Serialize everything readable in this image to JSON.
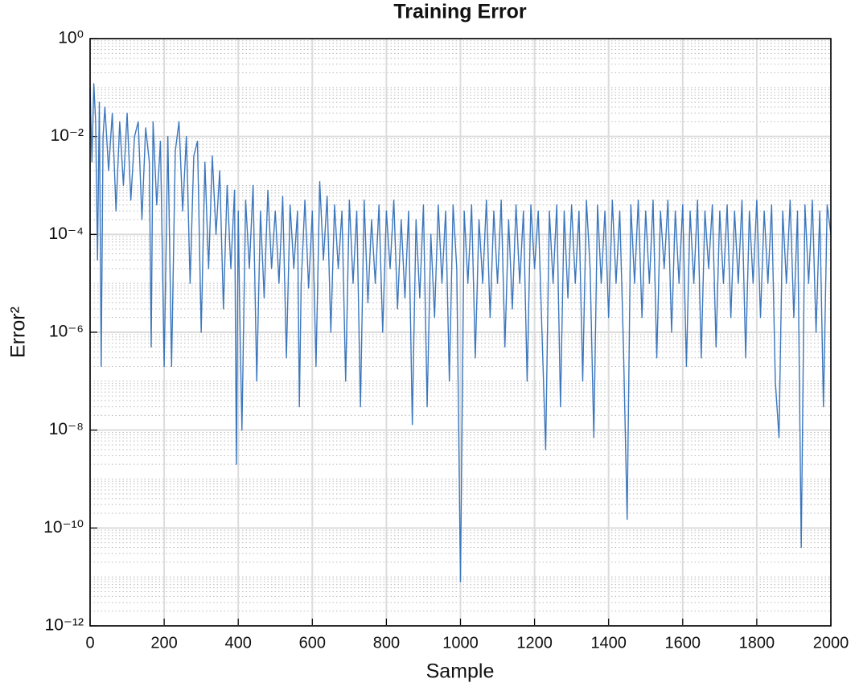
{
  "chart_data": {
    "type": "line",
    "title": "Training Error",
    "xlabel": "Sample",
    "ylabel": "Error²",
    "log_y": true,
    "grid": true,
    "minor_grid": true,
    "xlim": [
      0,
      2000
    ],
    "xticks": [
      0,
      200,
      400,
      600,
      800,
      1000,
      1200,
      1400,
      1600,
      1800,
      2000
    ],
    "ylim": [
      1e-12,
      1
    ],
    "yticks": [
      {
        "value": 1e-12,
        "label": "10⁻¹²"
      },
      {
        "value": 1e-10,
        "label": "10⁻¹⁰"
      },
      {
        "value": 1e-08,
        "label": "10⁻⁸"
      },
      {
        "value": 1e-06,
        "label": "10⁻⁶"
      },
      {
        "value": 0.0001,
        "label": "10⁻⁴"
      },
      {
        "value": 0.01,
        "label": "10⁻²"
      },
      {
        "value": 1,
        "label": "10⁰"
      }
    ],
    "x": [
      0,
      5,
      10,
      15,
      20,
      25,
      30,
      35,
      40,
      50,
      60,
      70,
      80,
      90,
      100,
      110,
      120,
      130,
      140,
      150,
      160,
      165,
      170,
      180,
      190,
      200,
      210,
      220,
      230,
      240,
      250,
      260,
      270,
      280,
      290,
      300,
      310,
      320,
      330,
      340,
      350,
      360,
      370,
      380,
      390,
      395,
      400,
      405,
      410,
      420,
      430,
      440,
      450,
      460,
      470,
      480,
      490,
      500,
      510,
      520,
      530,
      540,
      550,
      560,
      565,
      570,
      580,
      590,
      600,
      610,
      620,
      630,
      640,
      650,
      660,
      670,
      680,
      690,
      700,
      710,
      720,
      730,
      740,
      750,
      760,
      770,
      780,
      790,
      800,
      810,
      820,
      830,
      840,
      850,
      860,
      870,
      880,
      890,
      900,
      910,
      920,
      930,
      940,
      950,
      960,
      970,
      980,
      990,
      1000,
      1010,
      1020,
      1030,
      1040,
      1050,
      1060,
      1070,
      1080,
      1090,
      1100,
      1110,
      1120,
      1130,
      1140,
      1150,
      1160,
      1170,
      1180,
      1190,
      1200,
      1210,
      1220,
      1230,
      1240,
      1250,
      1260,
      1270,
      1280,
      1290,
      1300,
      1310,
      1320,
      1330,
      1340,
      1350,
      1360,
      1370,
      1380,
      1390,
      1400,
      1410,
      1420,
      1430,
      1440,
      1450,
      1460,
      1470,
      1480,
      1490,
      1500,
      1510,
      1520,
      1530,
      1540,
      1550,
      1560,
      1570,
      1580,
      1590,
      1600,
      1610,
      1620,
      1630,
      1640,
      1650,
      1660,
      1670,
      1680,
      1690,
      1700,
      1710,
      1720,
      1730,
      1740,
      1750,
      1760,
      1770,
      1780,
      1790,
      1800,
      1810,
      1820,
      1830,
      1840,
      1850,
      1860,
      1870,
      1880,
      1890,
      1900,
      1910,
      1920,
      1930,
      1940,
      1950,
      1960,
      1970,
      1980,
      1990,
      2000
    ],
    "series": [
      {
        "color": "#3c77bd",
        "values": [
          0.1,
          0.003,
          0.12,
          0.02,
          3e-05,
          0.05,
          2e-07,
          0.01,
          0.04,
          0.002,
          0.03,
          0.0003,
          0.02,
          0.001,
          0.03,
          0.0005,
          0.01,
          0.02,
          0.0002,
          0.015,
          0.003,
          5e-07,
          0.02,
          0.0004,
          0.008,
          2e-07,
          0.01,
          2e-07,
          0.005,
          0.02,
          0.0003,
          0.01,
          1e-05,
          0.004,
          0.008,
          1e-06,
          0.003,
          2e-05,
          0.004,
          0.0001,
          0.002,
          3e-06,
          0.001,
          2e-05,
          0.0008,
          2e-09,
          0.0003,
          1e-06,
          1e-08,
          0.0005,
          2e-05,
          0.001,
          1e-07,
          0.0003,
          5e-06,
          0.0008,
          2e-05,
          0.0003,
          1e-05,
          0.0006,
          3e-07,
          0.0004,
          2e-05,
          0.0003,
          3e-08,
          1e-05,
          0.0005,
          8e-06,
          0.0003,
          2e-07,
          0.0012,
          3e-05,
          0.0006,
          1e-06,
          0.0004,
          2e-05,
          0.0003,
          1e-07,
          0.0005,
          1e-05,
          0.0003,
          3e-08,
          0.0005,
          4e-06,
          0.0002,
          1e-05,
          0.0004,
          1e-06,
          0.0003,
          2e-05,
          0.0005,
          3e-06,
          0.0002,
          5e-06,
          0.0003,
          1.3e-08,
          0.0002,
          5e-06,
          0.0004,
          3e-08,
          0.0001,
          2e-06,
          0.0004,
          1e-05,
          0.0003,
          1e-07,
          0.0004,
          2e-05,
          8e-12,
          0.0003,
          1e-05,
          0.0004,
          3e-07,
          0.0002,
          1e-05,
          0.0005,
          2e-06,
          0.0003,
          1e-05,
          0.0005,
          5e-07,
          0.0002,
          3e-06,
          0.0004,
          1e-05,
          0.0003,
          1e-07,
          0.0004,
          2e-05,
          0.0003,
          1e-06,
          4e-09,
          0.0003,
          1e-05,
          0.0004,
          3e-08,
          0.0003,
          5e-06,
          0.0004,
          1e-05,
          0.0003,
          1e-07,
          0.0005,
          2e-05,
          7e-09,
          0.0004,
          1e-05,
          0.0003,
          2e-06,
          0.0005,
          1e-05,
          0.0003,
          5e-07,
          1.5e-10,
          0.0004,
          1e-05,
          0.0005,
          2e-06,
          0.0003,
          1e-05,
          0.0005,
          3e-07,
          0.0003,
          2e-05,
          0.0005,
          1e-06,
          0.0003,
          1e-05,
          0.0004,
          2e-07,
          0.0003,
          1e-05,
          0.0005,
          3e-07,
          0.0003,
          2e-05,
          0.0004,
          5e-07,
          0.0003,
          1e-05,
          0.0004,
          2e-06,
          0.0003,
          1e-05,
          0.0005,
          3e-07,
          0.0003,
          1e-05,
          0.0005,
          2e-06,
          0.0003,
          1e-05,
          0.0004,
          1e-07,
          7e-09,
          0.0003,
          1e-05,
          0.0005,
          2e-06,
          0.0003,
          4e-11,
          0.0004,
          1e-05,
          0.0005,
          1e-06,
          0.0003,
          3e-08,
          0.0004,
          0.0001
        ]
      }
    ]
  }
}
